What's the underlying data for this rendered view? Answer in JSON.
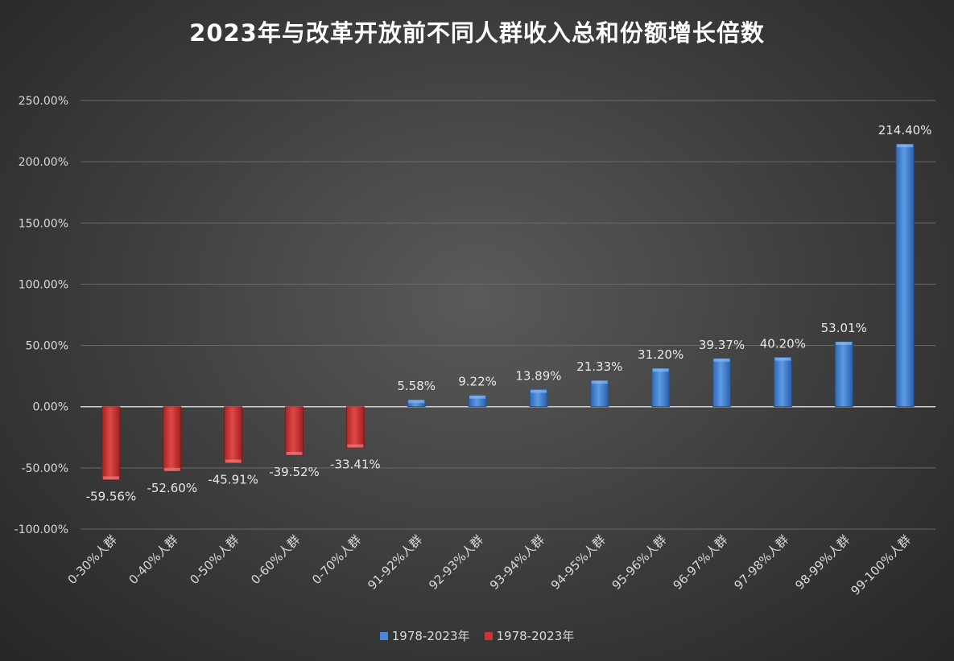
{
  "chart_data": {
    "type": "bar",
    "title": "2023年与改革开放前不同人群收入总和份额增长倍数",
    "categories": [
      "0-30%人群",
      "0-40%人群",
      "0-50%人群",
      "0-60%人群",
      "0-70%人群",
      "91-92%人群",
      "92-93%人群",
      "93-94%人群",
      "94-95%人群",
      "95-96%人群",
      "96-97%人群",
      "97-98%人群",
      "98-99%人群",
      "99-100%人群"
    ],
    "values": [
      -59.56,
      -52.6,
      -45.91,
      -39.52,
      -33.41,
      5.58,
      9.22,
      13.89,
      21.33,
      31.2,
      39.37,
      40.2,
      53.01,
      214.4
    ],
    "data_labels": [
      "-59.56%",
      "-52.60%",
      "-45.91%",
      "-39.52%",
      "-33.41%",
      "5.58%",
      "9.22%",
      "13.89%",
      "21.33%",
      "31.20%",
      "39.37%",
      "40.20%",
      "53.01%",
      "214.40%"
    ],
    "ylim": [
      -100,
      250
    ],
    "yticks": [
      250,
      200,
      150,
      100,
      50,
      0,
      -50,
      -100
    ],
    "ytick_labels": [
      "250.00%",
      "200.00%",
      "150.00%",
      "100.00%",
      "50.00%",
      "0.00%",
      "-50.00%",
      "-100.00%"
    ],
    "xlabel": "",
    "ylabel": "",
    "grid": true,
    "legend_position": "bottom",
    "series": [
      {
        "name": "1978-2023年",
        "color": "#4a86d6",
        "applies_to": "positive"
      },
      {
        "name": "1978-2023年",
        "color": "#cc3333",
        "applies_to": "negative"
      }
    ]
  }
}
